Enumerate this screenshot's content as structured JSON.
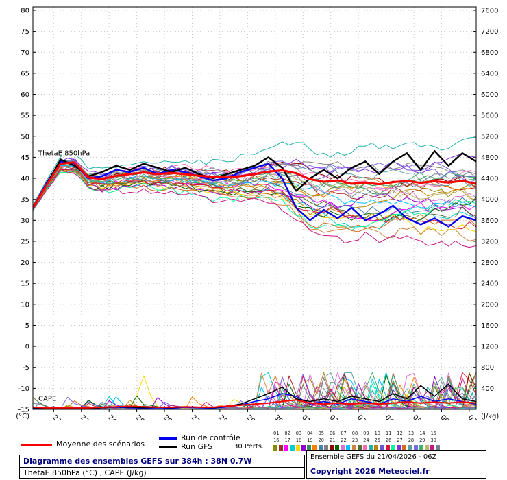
{
  "plot_labels": {
    "thetae": "ThetaE 850hPa",
    "cape": "CAPE"
  },
  "legend": {
    "mean_label": "Moyenne des scénarios",
    "control_label": "Run de contrôle",
    "gfs_label": "Run GFS",
    "perts_label": "30 Perts.",
    "pert_ids": [
      "01",
      "02",
      "03",
      "04",
      "05",
      "06",
      "07",
      "08",
      "09",
      "10",
      "11",
      "12",
      "13",
      "14",
      "15",
      "16",
      "17",
      "18",
      "19",
      "20",
      "21",
      "22",
      "23",
      "24",
      "25",
      "26",
      "27",
      "28",
      "29",
      "30"
    ]
  },
  "footer": {
    "left": {
      "line1": "Diagramme des ensembles GEFS sur 384h : 38N 0.7W",
      "line2": "ThetaE 850hPa (°C) , CAPE (J/kg)"
    },
    "right": {
      "line1": "Ensemble GEFS du 21/04/2026 - 06Z",
      "line2": "Copyright 2026 Meteociel.fr"
    }
  },
  "chart_data": {
    "type": "line",
    "title": "Diagramme des ensembles GEFS sur 384h : 38N 0.7W",
    "subtitle": "ThetaE 850hPa (°C) , CAPE (J/kg)",
    "run": "Ensemble GEFS du 21/04/2026 - 06Z",
    "forecast_hours": 384,
    "time_step_hours": 12,
    "x_dates": [
      "22/04",
      "23/04",
      "24/04",
      "25/04",
      "26/04",
      "27/04",
      "28/04",
      "29/04",
      "30/04",
      "01/05",
      "02/05",
      "03/05",
      "04/05",
      "05/05",
      "06/05",
      "07/05"
    ],
    "first_tick_offset_hours": 18,
    "axes": {
      "left_unit": "(°C)",
      "right_unit": "(J/kg)",
      "left_ticks": [
        80,
        75,
        70,
        65,
        60,
        55,
        50,
        45,
        40,
        35,
        30,
        25,
        20,
        15,
        10,
        5,
        0,
        -5,
        -10,
        -15
      ],
      "right_ticks": [
        7600,
        7200,
        6800,
        6400,
        6000,
        5600,
        5200,
        4800,
        4400,
        4000,
        3600,
        3200,
        2800,
        2400,
        2000,
        1600,
        1200,
        800,
        400
      ],
      "left_range": [
        -15,
        80
      ],
      "right_range": [
        0,
        7600
      ],
      "grid": "dotted"
    },
    "colors": {
      "mean": "#ff0000",
      "control": "#0000ee",
      "gfs": "#000000",
      "grid": "#c8c8c8"
    },
    "series_thetae": {
      "mean": [
        33.0,
        38.5,
        43.5,
        43.8,
        40.2,
        39.8,
        40.6,
        41.0,
        41.4,
        41.0,
        41.3,
        41.0,
        40.6,
        40.4,
        40.2,
        40.5,
        41.0,
        41.6,
        41.9,
        41.2,
        39.8,
        39.2,
        39.5,
        38.7,
        39.0,
        38.6,
        39.1,
        39.4,
        38.9,
        39.3,
        39.0,
        39.4,
        38.7
      ],
      "control": [
        33.0,
        39.0,
        44.0,
        43.5,
        40.0,
        40.5,
        42.0,
        41.5,
        42.5,
        41.0,
        42.0,
        41.5,
        40.5,
        39.5,
        40.0,
        41.5,
        42.5,
        43.5,
        40.0,
        33.0,
        30.0,
        32.5,
        30.5,
        33.0,
        30.0,
        31.5,
        33.5,
        30.5,
        29.0,
        30.5,
        28.5,
        31.0,
        30.0
      ],
      "gfs": [
        33.0,
        38.5,
        44.5,
        43.0,
        40.5,
        41.5,
        43.0,
        42.0,
        43.5,
        42.5,
        41.5,
        42.5,
        41.0,
        40.0,
        41.0,
        42.0,
        43.0,
        45.0,
        42.5,
        37.0,
        40.0,
        42.0,
        40.0,
        42.5,
        44.0,
        41.0,
        44.0,
        46.0,
        42.0,
        46.5,
        43.0,
        46.0,
        44.0
      ]
    },
    "series_cape": {
      "mean": [
        40,
        30,
        30,
        30,
        30,
        40,
        50,
        60,
        50,
        40,
        40,
        50,
        40,
        40,
        60,
        80,
        100,
        120,
        150,
        180,
        120,
        100,
        120,
        100,
        120,
        100,
        120,
        140,
        120,
        140,
        120,
        140,
        120
      ],
      "control": [
        20,
        10,
        10,
        20,
        10,
        30,
        40,
        30,
        20,
        30,
        20,
        40,
        30,
        20,
        50,
        80,
        150,
        200,
        300,
        250,
        100,
        150,
        100,
        200,
        150,
        100,
        200,
        150,
        250,
        150,
        200,
        150,
        100
      ],
      "gfs": [
        30,
        20,
        10,
        20,
        20,
        30,
        50,
        40,
        30,
        40,
        30,
        50,
        40,
        30,
        60,
        100,
        200,
        300,
        420,
        200,
        150,
        200,
        150,
        250,
        200,
        150,
        300,
        200,
        450,
        250,
        480,
        200,
        150
      ]
    },
    "ensemble": {
      "members": 30,
      "seed": 42,
      "spread_envelope_thetae": [
        0.6,
        1.2,
        1.6,
        2.0,
        2.2,
        2.4,
        2.6,
        2.8,
        3.0,
        3.0,
        3.2,
        3.2,
        3.4,
        3.6,
        3.8,
        4.0,
        4.5,
        5.0,
        6.0,
        7.5,
        8.5,
        8.5,
        9.0,
        9.0,
        9.0,
        9.0,
        9.0,
        9.0,
        9.5,
        9.5,
        9.5,
        9.5,
        9.5
      ],
      "cape_spike_member": 5,
      "cape_spike_hour": 96,
      "cape_spike_value": 640
    },
    "pert_colors": [
      "#8b8b00",
      "#a52a2a",
      "#ff00ff",
      "#00ced1",
      "#ffd700",
      "#9400d3",
      "#2e8b57",
      "#ff7f00",
      "#4682b4",
      "#808080",
      "#8b0000",
      "#006400",
      "#da70d6",
      "#00bfff",
      "#cd853f",
      "#556b2f",
      "#ff69b4",
      "#20b2aa",
      "#b8860b",
      "#6a5acd",
      "#dc143c",
      "#00fa9a",
      "#8a2be2",
      "#d2691e",
      "#5f9ea0",
      "#7b68ee",
      "#3cb371",
      "#bdb76b",
      "#c71585",
      "#708090"
    ]
  }
}
